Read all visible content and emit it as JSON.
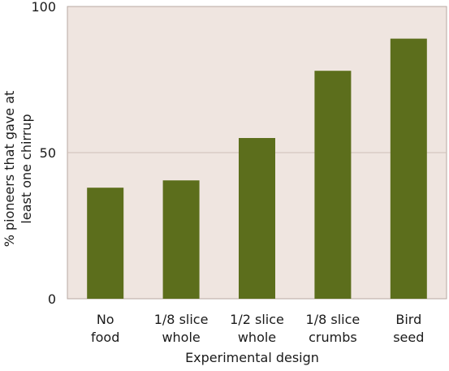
{
  "chart_data": {
    "type": "bar",
    "categories": [
      [
        "No",
        "food"
      ],
      [
        "1/8 slice",
        "whole"
      ],
      [
        "1/2 slice",
        "whole"
      ],
      [
        "1/8 slice",
        "crumbs"
      ],
      [
        "Bird",
        "seed"
      ]
    ],
    "values": [
      38,
      40.5,
      55,
      78,
      89
    ],
    "xlabel": "Experimental design",
    "ylabel": [
      "% pioneers that gave at",
      "least one chirrup"
    ],
    "ylim": [
      0,
      100
    ],
    "yticks": [
      0,
      50,
      100
    ],
    "grid": true,
    "colors": {
      "bar": "#5c6e1c",
      "plot_background": "#efe5e0",
      "plot_border": "#b7a8a2",
      "gridline": "#cfbfb8"
    }
  }
}
